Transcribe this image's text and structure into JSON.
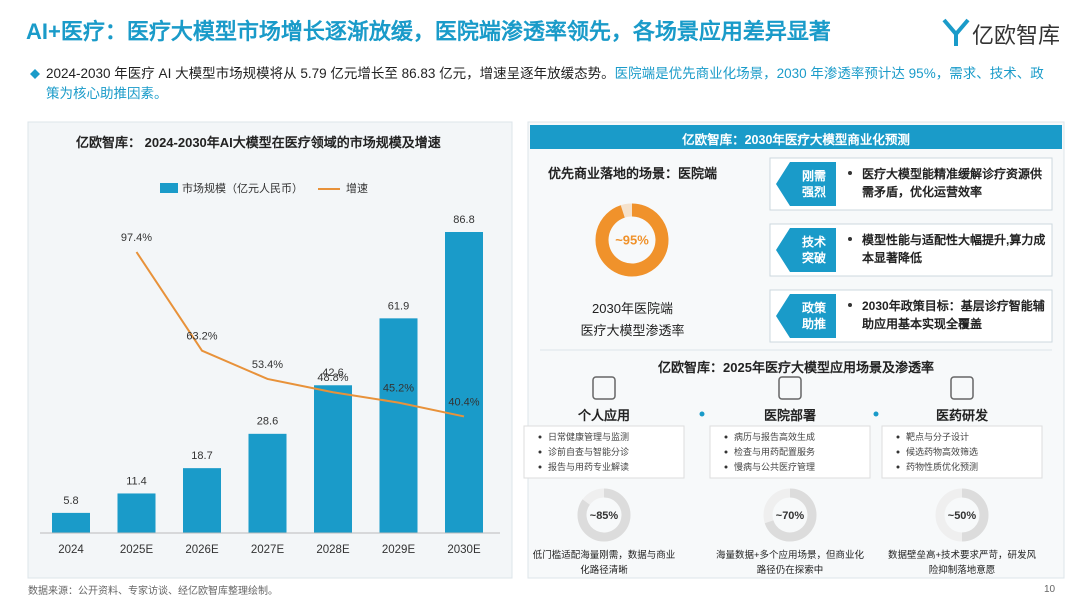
{
  "header": {
    "title": "AI+医疗：医疗大模型市场增长逐渐放缓，医院端渗透率领先，各场景应用差异显著",
    "logo": "亿欧智库"
  },
  "summary": {
    "text": "2024-2030 年医疗 AI 大模型市场规模将从 5.79 亿元增长至 86.83 亿元，增速呈逐年放缓态势。",
    "highlight": "医院端是优先商业化场景，2030 年渗透率预计达 95%，需求、技术、政策为核心助推因素。"
  },
  "chart_data": {
    "type": "bar",
    "title": "亿欧智库： 2024-2030年AI大模型在医疗领域的市场规模及增速",
    "categories": [
      "2024",
      "2025E",
      "2026E",
      "2027E",
      "2028E",
      "2029E",
      "2030E"
    ],
    "series": [
      {
        "name": "市场规模（亿元人民币）",
        "type": "bar",
        "color": "#1a9bc9",
        "values": [
          5.8,
          11.4,
          18.7,
          28.6,
          42.6,
          61.9,
          86.8
        ]
      },
      {
        "name": "增速",
        "type": "line",
        "color": "#e8923a",
        "values": [
          null,
          97.4,
          63.2,
          53.4,
          48.8,
          45.2,
          40.4
        ],
        "value_labels": [
          null,
          "97.4%",
          "63.2%",
          "53.4%",
          "48.8%",
          "45.2%",
          "40.4%"
        ]
      }
    ]
  },
  "forecast": {
    "title": "亿欧智库：2030年医疗大模型商业化预测",
    "scene": "优先商业落地的场景：医院端",
    "penetration": {
      "value": 95,
      "label": "~95%",
      "color": "#f0922b"
    },
    "caption": [
      "2030年医院端",
      "医疗大模型渗透率"
    ],
    "factors": [
      {
        "tag": "刚需强烈",
        "text": "医疗大模型能精准缓解诊疗资源供需矛盾，优化运营效率"
      },
      {
        "tag": "技术突破",
        "text": "模型性能与适配性大幅提升,算力成本显著降低"
      },
      {
        "tag": "政策助推",
        "text": "2030年政策目标：基层诊疗智能辅助应用基本实现全覆盖"
      }
    ]
  },
  "scenarios": {
    "title": "亿欧智库：2025年医疗大模型应用场景及渗透率",
    "items": [
      {
        "name": "个人应用",
        "uses": [
          "日常健康管理与监测",
          "诊前自查与智能分诊",
          "报告与用药专业解读"
        ],
        "penetration": 85,
        "label": "~85%",
        "note": "低门槛适配海量刚需，数据与商业化路径清晰"
      },
      {
        "name": "医院部署",
        "uses": [
          "病历与报告高效生成",
          "检查与用药配置服务",
          "慢病与公共医疗管理"
        ],
        "penetration": 70,
        "label": "~70%",
        "note": "海量数据+多个应用场景，但商业化路径仍在探索中"
      },
      {
        "name": "医药研发",
        "uses": [
          "靶点与分子设计",
          "候选药物高效筛选",
          "药物性质优化预测"
        ],
        "penetration": 50,
        "label": "~50%",
        "note": "数据壁垒高+技术要求严苛，研发风险抑制落地意愿"
      }
    ]
  },
  "footer": {
    "source": "数据来源：公开资料、专家访谈、经亿欧智库整理绘制。",
    "page": "10"
  }
}
